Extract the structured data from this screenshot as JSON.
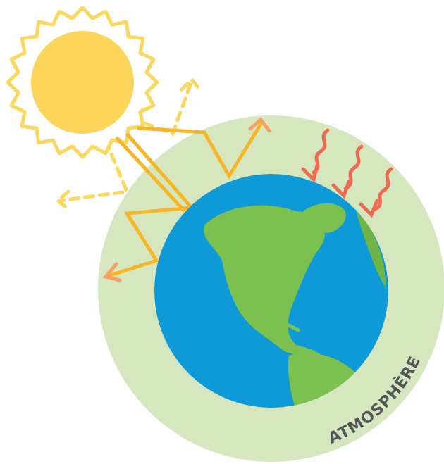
{
  "labels": {
    "atmosphere": "ATMOSPHÈRE"
  }
}
